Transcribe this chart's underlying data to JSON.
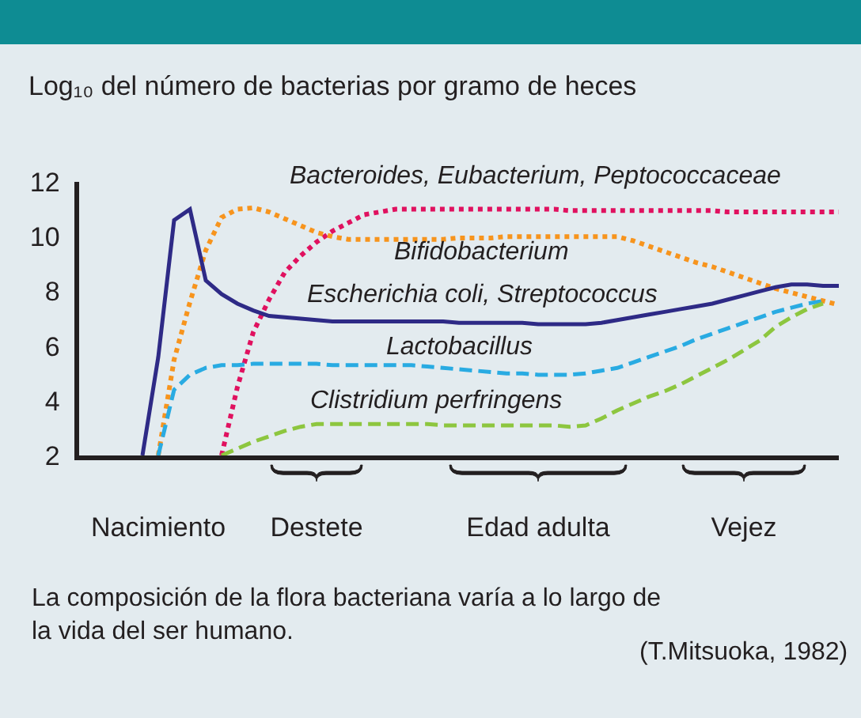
{
  "chart_data": {
    "type": "line",
    "ylabel": "Log₁₀ del número de bacterias por gramo de heces",
    "categories": [
      null,
      null,
      null,
      null,
      null,
      "Nacimiento",
      null,
      null,
      null,
      null,
      null,
      null,
      null,
      null,
      null,
      "Destete",
      null,
      null,
      null,
      null,
      null,
      null,
      null,
      null,
      null,
      null,
      null,
      null,
      null,
      "Edad adulta",
      null,
      null,
      null,
      null,
      null,
      null,
      null,
      null,
      null,
      null,
      null,
      null,
      "Vejez",
      null,
      null,
      null,
      null,
      null,
      null
    ],
    "ylim": [
      2,
      12
    ],
    "yticks": [
      2,
      4,
      6,
      8,
      10,
      12
    ],
    "grid": false,
    "legend": false,
    "marker": "none",
    "series": [
      {
        "name": "Bacteroides, Eubacterium, Peptococcaceae",
        "color": "#e0115f",
        "line_style": "dotted",
        "values": [
          null,
          null,
          null,
          null,
          null,
          null,
          null,
          null,
          null,
          2,
          4.5,
          6.5,
          7.7,
          8.7,
          9.3,
          9.8,
          10.2,
          10.5,
          10.8,
          10.9,
          11.0,
          11.0,
          11.0,
          11.0,
          11.0,
          11.0,
          11.0,
          11.0,
          11.0,
          11.0,
          11.0,
          10.95,
          10.95,
          10.95,
          10.95,
          10.95,
          10.95,
          10.95,
          10.95,
          10.95,
          10.95,
          10.9,
          10.9,
          10.9,
          10.9,
          10.9,
          10.9,
          10.9,
          10.9
        ]
      },
      {
        "name": "Bifidobacterium",
        "color": "#f7941d",
        "line_style": "dotted",
        "values": [
          null,
          null,
          null,
          null,
          null,
          2,
          5.5,
          7.6,
          9.5,
          10.7,
          11.0,
          11.05,
          10.9,
          10.65,
          10.4,
          10.15,
          10.0,
          9.9,
          9.9,
          9.9,
          9.9,
          9.9,
          9.9,
          9.9,
          9.95,
          9.95,
          9.95,
          10.0,
          10.0,
          10.0,
          10.0,
          10.0,
          10.0,
          10.0,
          10.0,
          9.85,
          9.65,
          9.45,
          9.25,
          9.05,
          8.9,
          8.7,
          8.5,
          8.3,
          8.1,
          7.95,
          7.8,
          7.65,
          7.5
        ]
      },
      {
        "name": "Escherichia coli, Streptococcus",
        "color": "#2e2a86",
        "line_style": "solid",
        "values": [
          null,
          null,
          null,
          null,
          2,
          5.6,
          10.6,
          11.0,
          8.4,
          7.9,
          7.55,
          7.3,
          7.1,
          7.05,
          7.0,
          6.95,
          6.9,
          6.9,
          6.9,
          6.9,
          6.9,
          6.9,
          6.9,
          6.9,
          6.85,
          6.85,
          6.85,
          6.85,
          6.85,
          6.8,
          6.8,
          6.8,
          6.8,
          6.85,
          6.95,
          7.05,
          7.15,
          7.25,
          7.35,
          7.45,
          7.55,
          7.7,
          7.85,
          8.0,
          8.15,
          8.25,
          8.25,
          8.2,
          8.2
        ]
      },
      {
        "name": "Lactobacillus",
        "color": "#29abe2",
        "line_style": "dashed",
        "values": [
          null,
          null,
          null,
          null,
          null,
          2,
          4.4,
          4.95,
          5.2,
          5.3,
          5.3,
          5.35,
          5.35,
          5.35,
          5.35,
          5.35,
          5.3,
          5.3,
          5.3,
          5.3,
          5.3,
          5.3,
          5.25,
          5.2,
          5.15,
          5.1,
          5.05,
          5.0,
          5.0,
          4.95,
          4.95,
          4.95,
          5.0,
          5.1,
          5.2,
          5.4,
          5.6,
          5.8,
          6.0,
          6.25,
          6.45,
          6.65,
          6.85,
          7.05,
          7.25,
          7.4,
          7.55,
          7.65,
          null
        ]
      },
      {
        "name": "Clistridium perfringens",
        "color": "#8dc63f",
        "line_style": "dashed",
        "values": [
          null,
          null,
          null,
          null,
          null,
          null,
          null,
          null,
          null,
          2,
          2.25,
          2.5,
          2.7,
          2.9,
          3.05,
          3.15,
          3.15,
          3.15,
          3.15,
          3.15,
          3.15,
          3.15,
          3.15,
          3.1,
          3.1,
          3.1,
          3.1,
          3.1,
          3.1,
          3.1,
          3.1,
          3.05,
          3.1,
          3.35,
          3.65,
          3.9,
          4.15,
          4.35,
          4.6,
          4.9,
          5.2,
          5.5,
          5.85,
          6.2,
          6.7,
          7.05,
          7.35,
          7.55,
          null
        ]
      }
    ],
    "annotations": [
      "La composición de la flora bacteriana varía a lo largo de la vida del ser humano.",
      "(T.Mitsuoka, 1982)"
    ]
  }
}
